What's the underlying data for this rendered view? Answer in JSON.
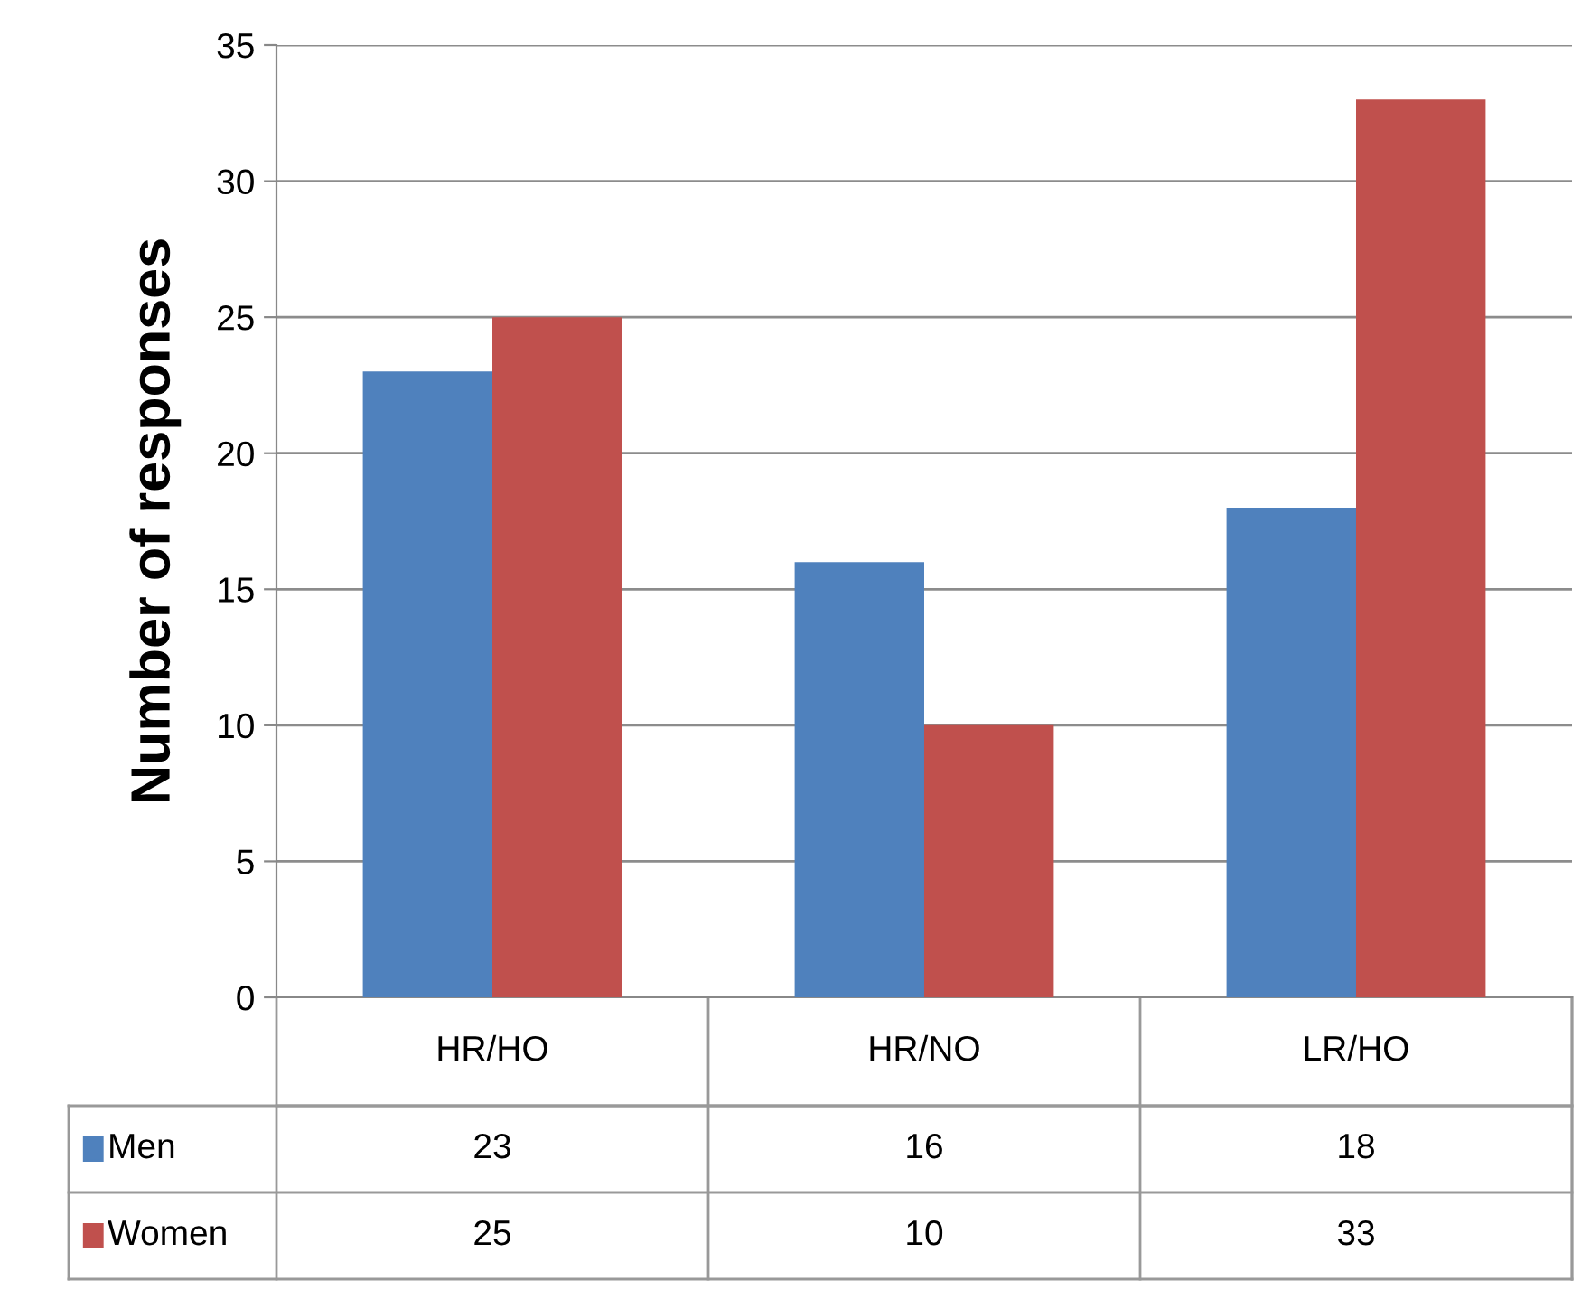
{
  "chart_data": {
    "type": "bar",
    "ylabel": "Number of responses",
    "categories": [
      "HR/HO",
      "HR/NO",
      "LR/HO"
    ],
    "series": [
      {
        "name": "Men",
        "color": "#4f81bd",
        "values": [
          23,
          16,
          18
        ]
      },
      {
        "name": "Women",
        "color": "#c0504d",
        "values": [
          25,
          10,
          33
        ]
      }
    ],
    "ylim": [
      0,
      35
    ],
    "yticks": [
      0,
      5,
      10,
      15,
      20,
      25,
      30,
      35
    ],
    "grid": "y",
    "legend": "bottom",
    "data_labels": true
  }
}
